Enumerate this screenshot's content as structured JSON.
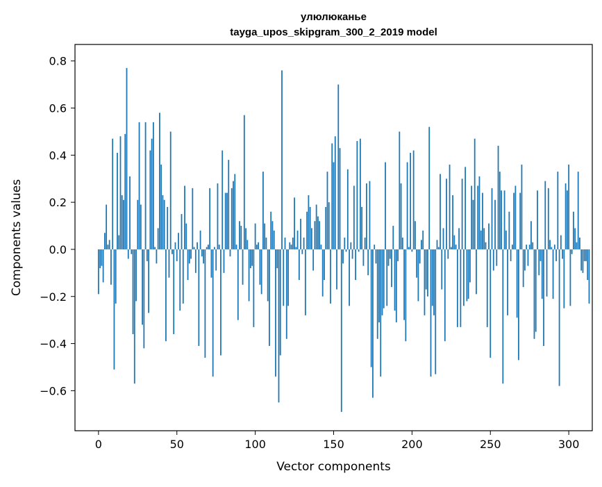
{
  "chart_data": {
    "type": "bar",
    "title_line1": "улюлюканье",
    "title_line2": "tayga_upos_skipgram_300_2_2019 model",
    "xlabel": "Vector components",
    "ylabel": "Components values",
    "xlim": [
      -15,
      315
    ],
    "ylim": [
      -0.77,
      0.87
    ],
    "xticks": [
      0,
      50,
      100,
      150,
      200,
      250,
      300
    ],
    "xtick_labels": [
      "0",
      "50",
      "100",
      "150",
      "200",
      "250",
      "300"
    ],
    "yticks": [
      -0.6,
      -0.4,
      -0.2,
      0.0,
      0.2,
      0.4,
      0.6,
      0.8
    ],
    "ytick_labels": [
      "−0.6",
      "−0.4",
      "−0.2",
      "0.0",
      "0.2",
      "0.4",
      "0.6",
      "0.8"
    ],
    "bar_color": "#1f77b4",
    "grid": false,
    "values": [
      -0.19,
      -0.08,
      -0.07,
      -0.14,
      0.07,
      0.19,
      0.02,
      0.04,
      -0.15,
      0.47,
      -0.51,
      -0.23,
      0.41,
      0.06,
      0.48,
      0.23,
      0.21,
      0.49,
      0.77,
      -0.04,
      0.31,
      -0.02,
      -0.36,
      -0.57,
      -0.22,
      0.21,
      0.54,
      0.19,
      -0.32,
      -0.42,
      0.54,
      -0.05,
      -0.27,
      0.42,
      0.47,
      0.54,
      0.01,
      -0.06,
      0.09,
      0.58,
      0.36,
      0.23,
      0.21,
      -0.39,
      0.18,
      -0.12,
      0.5,
      -0.02,
      -0.36,
      0.03,
      -0.05,
      0.07,
      -0.26,
      0.15,
      -0.23,
      0.27,
      0.11,
      -0.13,
      -0.06,
      -0.04,
      0.26,
      0.01,
      -0.1,
      0.03,
      -0.41,
      0.08,
      -0.03,
      -0.06,
      -0.46,
      0.01,
      0.02,
      0.26,
      -0.12,
      -0.54,
      0.01,
      -0.09,
      0.28,
      0.02,
      -0.45,
      0.42,
      -0.1,
      0.24,
      0.24,
      0.38,
      -0.03,
      0.26,
      0.29,
      0.32,
      0.02,
      -0.3,
      0.12,
      0.1,
      -0.15,
      0.57,
      0.09,
      0.04,
      -0.22,
      -0.08,
      -0.07,
      -0.33,
      0.11,
      0.02,
      0.03,
      -0.15,
      -0.19,
      0.33,
      0.11,
      0.05,
      -0.22,
      -0.41,
      0.16,
      0.12,
      0.08,
      -0.54,
      -0.08,
      -0.65,
      -0.45,
      0.76,
      -0.24,
      0.05,
      -0.38,
      -0.24,
      0.03,
      0.02,
      0.05,
      0.22,
      0.01,
      0.08,
      -0.13,
      0.13,
      -0.02,
      0.05,
      -0.28,
      0.16,
      0.23,
      0.18,
      0.09,
      -0.09,
      0.12,
      0.19,
      0.14,
      0.12,
      0.02,
      -0.2,
      -0.13,
      0.18,
      0.33,
      0.2,
      -0.23,
      0.45,
      0.37,
      0.48,
      -0.17,
      0.7,
      0.43,
      -0.69,
      -0.06,
      0.05,
      -0.01,
      0.34,
      -0.24,
      0.03,
      -0.04,
      0.27,
      -0.13,
      0.46,
      -0.01,
      0.47,
      0.18,
      -0.07,
      0.05,
      0.28,
      -0.11,
      0.29,
      -0.5,
      -0.63,
      0.02,
      -0.06,
      -0.38,
      -0.31,
      -0.54,
      -0.28,
      -0.25,
      0.37,
      -0.24,
      -0.07,
      -0.04,
      -0.16,
      0.1,
      -0.26,
      -0.31,
      -0.05,
      0.5,
      0.28,
      0.05,
      -0.3,
      -0.39,
      0.37,
      0.01,
      0.41,
      -0.01,
      0.42,
      0.12,
      -0.12,
      -0.22,
      -0.06,
      0.04,
      0.08,
      -0.28,
      -0.17,
      -0.2,
      0.52,
      -0.54,
      -0.24,
      -0.28,
      -0.53,
      0.04,
      0.01,
      0.32,
      -0.17,
      0.09,
      -0.39,
      0.3,
      -0.04,
      0.36,
      0.01,
      0.23,
      0.06,
      0.02,
      -0.33,
      0.09,
      -0.33,
      0.3,
      -0.24,
      0.35,
      -0.22,
      -0.21,
      -0.14,
      0.27,
      0.21,
      0.47,
      -0.19,
      0.27,
      0.31,
      0.08,
      0.24,
      0.09,
      0.03,
      -0.33,
      0.11,
      -0.46,
      0.26,
      -0.09,
      0.21,
      -0.07,
      0.44,
      0.33,
      0.25,
      -0.57,
      0.25,
      0.08,
      -0.28,
      0.16,
      -0.05,
      0.02,
      0.24,
      0.27,
      -0.29,
      -0.47,
      0.24,
      0.36,
      -0.16,
      -0.09,
      0.02,
      -0.07,
      0.02,
      0.12,
      0.03,
      -0.38,
      -0.35,
      0.25,
      -0.11,
      -0.05,
      -0.21,
      -0.41,
      0.29,
      -0.2,
      0.26,
      0.04,
      0.01,
      -0.21,
      0.02,
      -0.05,
      0.33,
      -0.58,
      0.06,
      -0.04,
      -0.25,
      0.28,
      0.25,
      0.36,
      -0.24,
      -0.02,
      0.16,
      0.09,
      0.03,
      0.33,
      0.05,
      -0.09,
      -0.1,
      -0.05,
      -0.05,
      -0.13,
      -0.23
    ]
  }
}
